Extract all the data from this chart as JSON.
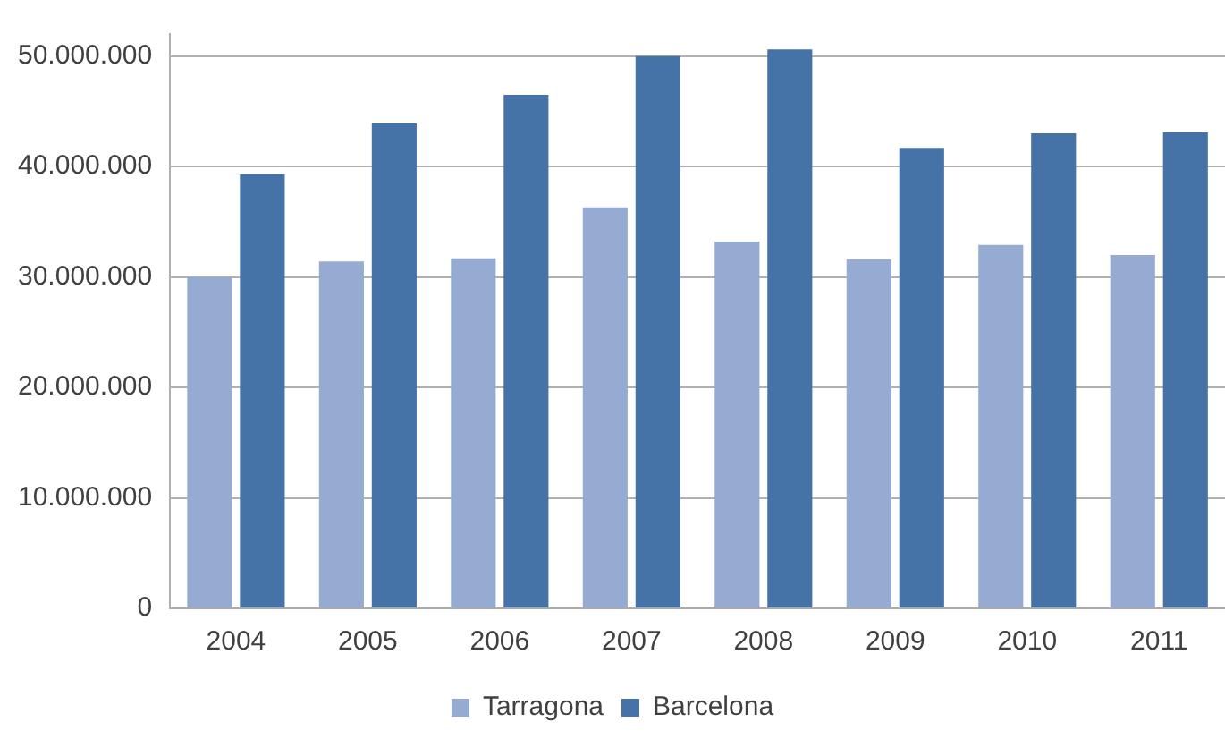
{
  "chart_data": {
    "type": "bar",
    "categories": [
      "2004",
      "2005",
      "2006",
      "2007",
      "2008",
      "2009",
      "2010",
      "2011"
    ],
    "series": [
      {
        "name": "Tarragona",
        "color": "#95abd2",
        "values": [
          30000000,
          31400000,
          31700000,
          36300000,
          33200000,
          31600000,
          32900000,
          32000000
        ]
      },
      {
        "name": "Barcelona",
        "color": "#4572a7",
        "values": [
          39300000,
          43900000,
          46500000,
          50000000,
          50600000,
          41700000,
          43000000,
          43100000
        ]
      }
    ],
    "ylim": [
      0,
      52000000
    ],
    "yticks": [
      {
        "value": 0,
        "label": "0"
      },
      {
        "value": 10000000,
        "label": "10.000.000"
      },
      {
        "value": 20000000,
        "label": "20.000.000"
      },
      {
        "value": 30000000,
        "label": "30.000.000"
      },
      {
        "value": 40000000,
        "label": "40.000.000"
      },
      {
        "value": 50000000,
        "label": "50.000.000"
      }
    ],
    "grid": "y",
    "legend": "bottom"
  }
}
